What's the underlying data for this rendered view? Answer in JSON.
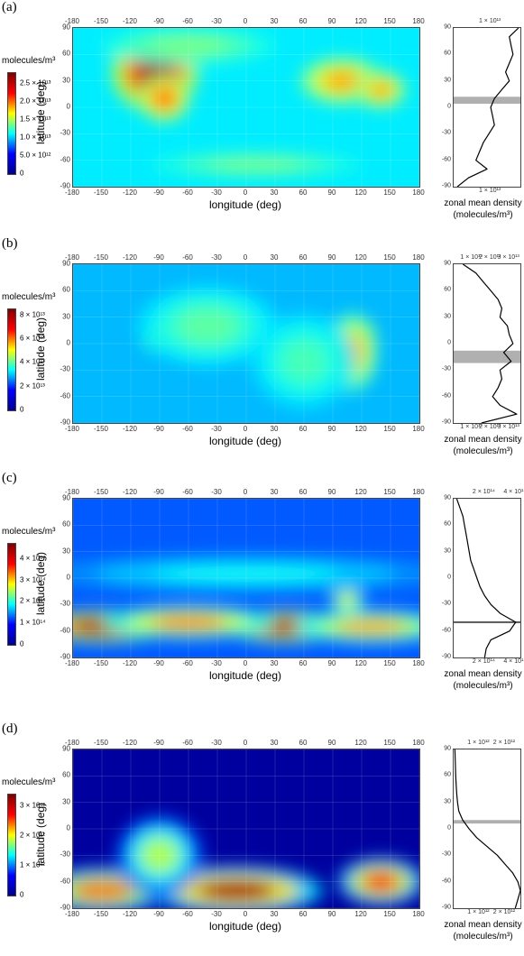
{
  "chart_data": [
    {
      "type": "heatmap",
      "panel_label": "(a)",
      "xlabel": "longitude (deg)",
      "ylabel": "latitude (deg)",
      "x_ticks": [
        "-180",
        "-150",
        "-120",
        "-90",
        "-60",
        "-30",
        "0",
        "30",
        "60",
        "90",
        "120",
        "150",
        "180"
      ],
      "y_ticks": [
        "90",
        "60",
        "30",
        "0",
        "-30",
        "-60",
        "-90"
      ],
      "xlim": [
        -180,
        180
      ],
      "ylim": [
        -90,
        90
      ],
      "colorbar": {
        "title": "molecules/m³",
        "ticks": [
          "2.5 × 10¹³",
          "2.0 × 10¹³",
          "1.5 × 10¹³",
          "1.0 × 10¹³",
          "5.0 × 10¹²",
          "0"
        ],
        "tick_values": [
          25000000000000.0,
          20000000000000.0,
          15000000000000.0,
          10000000000000.0,
          5000000000000.0,
          0
        ],
        "max": 28000000000000.0
      },
      "colormap": "jet",
      "hotspots": [
        {
          "lon": -95,
          "lat": 40,
          "value": 27000000000000.0,
          "slon": 25,
          "slat": 25
        },
        {
          "lon": -85,
          "lat": 10,
          "value": 22000000000000.0,
          "slon": 15,
          "slat": 15
        },
        {
          "lon": 100,
          "lat": 30,
          "value": 20000000000000.0,
          "slon": 25,
          "slat": 15
        },
        {
          "lon": 140,
          "lat": 20,
          "value": 20000000000000.0,
          "slon": 15,
          "slat": 12
        },
        {
          "lon": 10,
          "lat": -65,
          "value": 14000000000000.0,
          "slon": 60,
          "slat": 8
        },
        {
          "lon": -60,
          "lat": 70,
          "value": 14000000000000.0,
          "slon": 50,
          "slat": 12
        }
      ],
      "background_value": 10000000000000.0,
      "zonal_mean": {
        "label": "zonal mean density",
        "unit": "(molecules/m³)",
        "x_ticks": [
          "1 × 10¹³"
        ],
        "x_tick_values": [
          10000000000000.0
        ],
        "xlim": [
          0,
          18000000000000.0
        ],
        "lat": [
          90,
          80,
          70,
          60,
          50,
          40,
          30,
          20,
          10,
          0,
          -10,
          -20,
          -30,
          -40,
          -50,
          -60,
          -70,
          -80,
          -90
        ],
        "values": [
          17500000000000.0,
          15000000000000.0,
          15500000000000.0,
          16000000000000.0,
          15000000000000.0,
          14000000000000.0,
          15000000000000.0,
          13000000000000.0,
          11000000000000.0,
          10000000000000.0,
          10500000000000.0,
          11000000000000.0,
          9500000000000.0,
          8000000000000.0,
          7000000000000.0,
          6000000000000.0,
          9000000000000.0,
          4000000000000.0,
          1000000000000.0
        ],
        "shaded_lat": [
          4,
          12
        ]
      }
    },
    {
      "type": "heatmap",
      "panel_label": "(b)",
      "xlabel": "longitude (deg)",
      "ylabel": "latitude (deg)",
      "x_ticks": [
        "-180",
        "-150",
        "-120",
        "-90",
        "-60",
        "-30",
        "0",
        "30",
        "60",
        "90",
        "120",
        "150",
        "180"
      ],
      "y_ticks": [
        "90",
        "60",
        "30",
        "0",
        "-30",
        "-60",
        "-90"
      ],
      "xlim": [
        -180,
        180
      ],
      "ylim": [
        -90,
        90
      ],
      "colorbar": {
        "title": "molecules/m³",
        "ticks": [
          "8 × 10¹³",
          "6 × 10¹³",
          "4 × 10¹³",
          "2 × 10¹³",
          "0"
        ],
        "tick_values": [
          80000000000000.0,
          60000000000000.0,
          40000000000000.0,
          20000000000000.0,
          0
        ],
        "max": 85000000000000.0
      },
      "colormap": "jet",
      "hotspots": [
        {
          "lon": 118,
          "lat": 5,
          "value": 83000000000000.0,
          "slon": 10,
          "slat": 14
        },
        {
          "lon": 110,
          "lat": -10,
          "value": 60000000000000.0,
          "slon": 15,
          "slat": 25
        },
        {
          "lon": -95,
          "lat": 5,
          "value": 55000000000000.0,
          "slon": 8,
          "slat": 8
        },
        {
          "lon": -40,
          "lat": 20,
          "value": 40000000000000.0,
          "slon": 40,
          "slat": 25
        },
        {
          "lon": 60,
          "lat": -20,
          "value": 38000000000000.0,
          "slon": 30,
          "slat": 30
        }
      ],
      "background_value": 26000000000000.0,
      "zonal_mean": {
        "label": "zonal mean density",
        "unit": "(molecules/m³)",
        "x_ticks": [
          "1 × 10¹³",
          "2 × 10¹³",
          "3 × 10¹³"
        ],
        "x_tick_values": [
          10000000000000.0,
          20000000000000.0,
          30000000000000.0
        ],
        "xlim": [
          0,
          36000000000000.0
        ],
        "lat": [
          90,
          80,
          70,
          60,
          50,
          40,
          30,
          20,
          10,
          0,
          -10,
          -20,
          -30,
          -40,
          -50,
          -60,
          -70,
          -80,
          -90
        ],
        "values": [
          5000000000000.0,
          12000000000000.0,
          16000000000000.0,
          20000000000000.0,
          24000000000000.0,
          26000000000000.0,
          25000000000000.0,
          29000000000000.0,
          30000000000000.0,
          32000000000000.0,
          27000000000000.0,
          31000000000000.0,
          25000000000000.0,
          26000000000000.0,
          24000000000000.0,
          21000000000000.0,
          25000000000000.0,
          34000000000000.0,
          15000000000000.0
        ],
        "shaded_lat": [
          -22,
          -8
        ]
      }
    },
    {
      "type": "heatmap",
      "panel_label": "(c)",
      "xlabel": "longitude (deg)",
      "ylabel": "latitude (deg)",
      "x_ticks": [
        "-180",
        "-150",
        "-120",
        "-90",
        "-60",
        "-30",
        "0",
        "30",
        "60",
        "90",
        "120",
        "150",
        "180"
      ],
      "y_ticks": [
        "90",
        "60",
        "30",
        "0",
        "-30",
        "-60",
        "-90"
      ],
      "xlim": [
        -180,
        180
      ],
      "ylim": [
        -90,
        90
      ],
      "colorbar": {
        "title": "molecules/m³",
        "ticks": [
          "4 × 10¹⁴",
          "3 × 10¹⁴",
          "2 × 10¹⁴",
          "1 × 10¹⁴",
          "0"
        ],
        "tick_values": [
          400000000000000.0,
          300000000000000.0,
          200000000000000.0,
          100000000000000.0,
          0
        ],
        "max": 470000000000000.0
      },
      "colormap": "jet",
      "hotspots": [
        {
          "lon": -150,
          "lat": -55,
          "value": 460000000000000.0,
          "slon": 40,
          "slat": 10
        },
        {
          "lon": 40,
          "lat": -55,
          "value": 460000000000000.0,
          "slon": 35,
          "slat": 10
        },
        {
          "lon": -60,
          "lat": -50,
          "value": 360000000000000.0,
          "slon": 50,
          "slat": 10
        },
        {
          "lon": 130,
          "lat": -55,
          "value": 340000000000000.0,
          "slon": 45,
          "slat": 10
        },
        {
          "lon": 105,
          "lat": -25,
          "value": 300000000000000.0,
          "slon": 10,
          "slat": 8
        },
        {
          "lon": 0,
          "lat": 5,
          "value": 180000000000000.0,
          "slon": 120,
          "slat": 12
        }
      ],
      "background_value": 100000000000000.0,
      "zonal_mean": {
        "label": "zonal mean density",
        "unit": "(molecules/m³)",
        "x_ticks": [
          "2 × 10¹⁴",
          "4 × 10¹⁴"
        ],
        "x_tick_values": [
          200000000000000.0,
          400000000000000.0
        ],
        "xlim": [
          0,
          430000000000000.0
        ],
        "lat": [
          90,
          80,
          70,
          60,
          50,
          40,
          30,
          20,
          10,
          0,
          -10,
          -20,
          -30,
          -40,
          -50,
          -60,
          -70,
          -80,
          -90
        ],
        "values": [
          20000000000000.0,
          40000000000000.0,
          60000000000000.0,
          70000000000000.0,
          80000000000000.0,
          90000000000000.0,
          100000000000000.0,
          110000000000000.0,
          130000000000000.0,
          150000000000000.0,
          170000000000000.0,
          200000000000000.0,
          240000000000000.0,
          300000000000000.0,
          400000000000000.0,
          360000000000000.0,
          240000000000000.0,
          210000000000000.0,
          200000000000000.0
        ],
        "shaded_lat": [
          -51,
          -49
        ]
      }
    },
    {
      "type": "heatmap",
      "panel_label": "(d)",
      "xlabel": "longitude (deg)",
      "ylabel": "latitude (deg)",
      "x_ticks": [
        "-180",
        "-150",
        "-120",
        "-90",
        "-60",
        "-30",
        "0",
        "30",
        "60",
        "90",
        "120",
        "150",
        "180"
      ],
      "y_ticks": [
        "90",
        "60",
        "30",
        "0",
        "-30",
        "-60",
        "-90"
      ],
      "xlim": [
        -180,
        180
      ],
      "ylim": [
        -90,
        90
      ],
      "colorbar": {
        "title": "molecules/m³",
        "ticks": [
          "3 × 10¹²",
          "2 × 10¹²",
          "1 × 10¹²",
          "0"
        ],
        "tick_values": [
          3000000000000.0,
          2000000000000.0,
          1000000000000.0,
          0
        ],
        "max": 3400000000000.0
      },
      "colormap": "jet",
      "hotspots": [
        {
          "lon": -10,
          "lat": -70,
          "value": 3300000000000.0,
          "slon": 50,
          "slat": 15
        },
        {
          "lon": 140,
          "lat": -60,
          "value": 2900000000000.0,
          "slon": 25,
          "slat": 15
        },
        {
          "lon": -150,
          "lat": -70,
          "value": 2600000000000.0,
          "slon": 40,
          "slat": 15
        },
        {
          "lon": -90,
          "lat": -30,
          "value": 1900000000000.0,
          "slon": 25,
          "slat": 25
        }
      ],
      "background_value": 100000000000.0,
      "zonal_mean": {
        "label": "zonal mean density",
        "unit": "(molecules/m³)",
        "x_ticks": [
          "1 × 10¹²",
          "2 × 10¹²"
        ],
        "x_tick_values": [
          1000000000000.0,
          2000000000000.0
        ],
        "xlim": [
          0,
          2600000000000.0
        ],
        "lat": [
          90,
          80,
          70,
          60,
          50,
          40,
          30,
          20,
          10,
          0,
          -10,
          -20,
          -30,
          -40,
          -50,
          -60,
          -70,
          -80,
          -90
        ],
        "values": [
          50000000000.0,
          60000000000.0,
          70000000000.0,
          80000000000.0,
          100000000000.0,
          120000000000.0,
          150000000000.0,
          200000000000.0,
          350000000000.0,
          600000000000.0,
          900000000000.0,
          1300000000000.0,
          1700000000000.0,
          2000000000000.0,
          2300000000000.0,
          2500000000000.0,
          2600000000000.0,
          2500000000000.0,
          2400000000000.0
        ],
        "shaded_lat": [
          6,
          10
        ]
      }
    }
  ]
}
